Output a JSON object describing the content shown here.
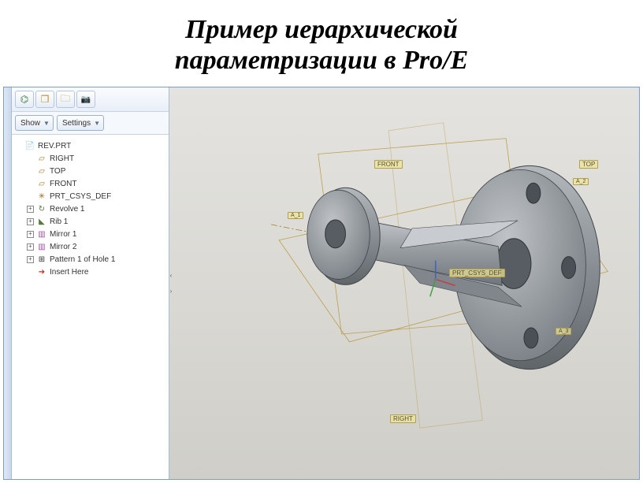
{
  "title_line1": "Пример иерархической",
  "title_line2": "параметризации в Pro/E",
  "toolbar": {
    "icons": [
      "tree-icon",
      "layers-icon",
      "folder-icon",
      "camera-icon"
    ],
    "glyphs": [
      "⌬",
      "❐",
      "🗀",
      "📷"
    ]
  },
  "controls": {
    "show_label": "Show",
    "settings_label": "Settings"
  },
  "tree": {
    "items": [
      {
        "level": 0,
        "expander": "",
        "icon": "📄",
        "icon_name": "part-icon",
        "label": "REV.PRT",
        "color": "#333"
      },
      {
        "level": 1,
        "expander": "",
        "icon": "▱",
        "icon_name": "datum-plane-icon",
        "label": "RIGHT",
        "color": "#a07820"
      },
      {
        "level": 1,
        "expander": "",
        "icon": "▱",
        "icon_name": "datum-plane-icon",
        "label": "TOP",
        "color": "#a07820"
      },
      {
        "level": 1,
        "expander": "",
        "icon": "▱",
        "icon_name": "datum-plane-icon",
        "label": "FRONT",
        "color": "#a07820"
      },
      {
        "level": 1,
        "expander": "",
        "icon": "✳",
        "icon_name": "csys-icon",
        "label": "PRT_CSYS_DEF",
        "color": "#a06820"
      },
      {
        "level": 1,
        "expander": "+",
        "icon": "↻",
        "icon_name": "revolve-icon",
        "label": "Revolve 1",
        "color": "#5a7840"
      },
      {
        "level": 1,
        "expander": "+",
        "icon": "◣",
        "icon_name": "rib-icon",
        "label": "Rib 1",
        "color": "#5a7840"
      },
      {
        "level": 1,
        "expander": "+",
        "icon": "▥",
        "icon_name": "mirror-icon",
        "label": "Mirror 1",
        "color": "#a050a0"
      },
      {
        "level": 1,
        "expander": "+",
        "icon": "▥",
        "icon_name": "mirror-icon",
        "label": "Mirror 2",
        "color": "#a050a0"
      },
      {
        "level": 1,
        "expander": "+",
        "icon": "⊞",
        "icon_name": "pattern-icon",
        "label": "Pattern 1 of Hole 1",
        "color": "#333"
      },
      {
        "level": 1,
        "expander": "",
        "icon": "➔",
        "icon_name": "insert-arrow-icon",
        "label": "Insert Here",
        "color": "#c03020"
      }
    ]
  },
  "viewport": {
    "labels": {
      "front": "FRONT",
      "top": "TOP",
      "right": "RIGHT",
      "csys": "PRT_CSYS_DEF",
      "axis1": "A_1",
      "axis2": "A_2",
      "axis3": "A_3"
    },
    "colors": {
      "bg_top": "#e4e3df",
      "bg_bottom": "#cfcec8",
      "part_light": "#a9adb1",
      "part_mid": "#8b9095",
      "part_dark": "#6a7075",
      "part_edge": "#3f4448",
      "datum_line": "#b89840",
      "axis_x": "#c04040",
      "axis_y": "#40a040",
      "axis_z": "#4060c0"
    }
  }
}
